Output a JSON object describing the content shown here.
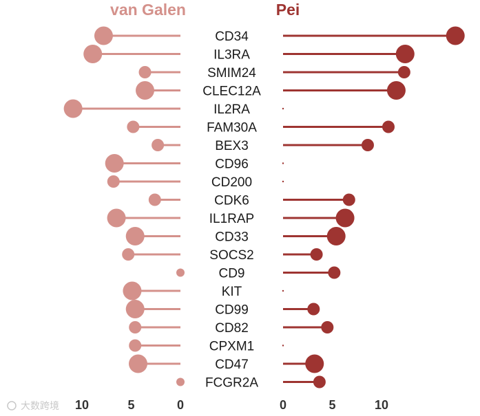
{
  "chart_data": {
    "type": "lollipop",
    "panels": [
      {
        "name": "van Galen",
        "direction": "left",
        "color": "#d4918b",
        "xlim": [
          0,
          11
        ],
        "ticks": [
          0,
          5,
          10
        ]
      },
      {
        "name": "Pei",
        "direction": "right",
        "color": "#9e3431",
        "xlim": [
          0,
          17
        ],
        "ticks": [
          0,
          5,
          10
        ]
      }
    ],
    "genes": [
      "CD34",
      "IL3RA",
      "SMIM24",
      "CLEC12A",
      "IL2RA",
      "FAM30A",
      "BEX3",
      "CD96",
      "CD200",
      "CDK6",
      "IL1RAP",
      "CD33",
      "SOCS2",
      "CD9",
      "KIT",
      "CD99",
      "CD82",
      "CPXM1",
      "CD47",
      "FCGR2A"
    ],
    "van_galen": {
      "values": [
        7.8,
        8.9,
        3.6,
        3.6,
        10.9,
        4.8,
        2.3,
        6.7,
        6.8,
        2.6,
        6.5,
        4.6,
        5.3,
        0.0,
        4.9,
        4.6,
        4.6,
        4.6,
        4.3,
        0.0
      ],
      "sizes": [
        3,
        3,
        2,
        3,
        3,
        2,
        2,
        3,
        2,
        2,
        3,
        3,
        2,
        1,
        3,
        3,
        2,
        2,
        3,
        1
      ]
    },
    "pei": {
      "values": [
        17.5,
        12.4,
        12.3,
        11.5,
        0.0,
        10.7,
        8.6,
        0.0,
        0.0,
        6.7,
        6.3,
        5.4,
        3.4,
        5.2,
        0.0,
        3.1,
        4.5,
        0.0,
        3.2,
        3.7
      ],
      "sizes": [
        3,
        3,
        2,
        3,
        0,
        2,
        2,
        0,
        0,
        2,
        3,
        3,
        2,
        2,
        0,
        2,
        2,
        0,
        3,
        2
      ]
    }
  },
  "watermark": "大数跨境"
}
